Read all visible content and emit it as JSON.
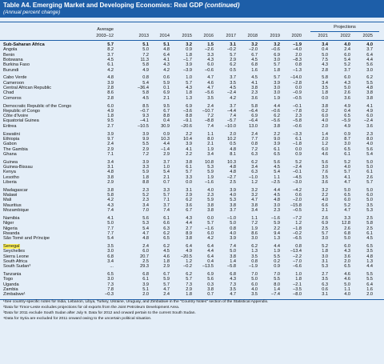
{
  "header": {
    "title": "Table A4. Emerging Market and Developing Economies: Real GDP",
    "title_note": "(continued)",
    "subtitle": "(Annual percent change)"
  },
  "table": {
    "average_label": "Average",
    "projections_label": "Projections",
    "columns": [
      "2003–12",
      "2013",
      "2014",
      "2015",
      "2016",
      "2017",
      "2018",
      "2019",
      "2020",
      "2021",
      "2022",
      "2025"
    ],
    "groups": [
      {
        "rows": [
          {
            "name": "Sub-Saharan Africa",
            "bold": true,
            "values": [
              "5.7",
              "5.1",
              "5.1",
              "3.2",
              "1.5",
              "3.1",
              "3.2",
              "3.2",
              "–1.9",
              "3.4",
              "4.0",
              "4.0"
            ]
          },
          {
            "name": "Angola",
            "values": [
              "8.2",
              "5.0",
              "4.8",
              "0.9",
              "–2.6",
              "–0.2",
              "–2.0",
              "–0.6",
              "–4.0",
              "0.4",
              "2.4",
              "3.7"
            ]
          },
          {
            "name": "Benin",
            "values": [
              "3.7",
              "7.2",
              "6.4",
              "1.8",
              "3.3",
              "5.7",
              "6.7",
              "6.9",
              "2.0",
              "5.0",
              "6.0",
              "6.4"
            ]
          },
          {
            "name": "Botswana",
            "values": [
              "4.5",
              "11.3",
              "4.1",
              "–1.7",
              "4.3",
              "2.9",
              "4.5",
              "3.0",
              "–8.3",
              "7.5",
              "5.4",
              "4.4"
            ]
          },
          {
            "name": "Burkina Faso",
            "values": [
              "6.1",
              "5.8",
              "4.3",
              "3.9",
              "6.0",
              "6.2",
              "6.8",
              "5.7",
              "0.8",
              "4.3",
              "5.2",
              "5.6"
            ]
          },
          {
            "name": "Burundi",
            "values": [
              "4.2",
              "4.9",
              "4.2",
              "–3.9",
              "–0.6",
              "0.5",
              "1.6",
              "1.8",
              "–1.3",
              "2.8",
              "3.7",
              "3.0"
            ]
          }
        ]
      },
      {
        "rows": [
          {
            "name": "Cabo Verde",
            "values": [
              "4.8",
              "0.8",
              "0.6",
              "1.0",
              "4.7",
              "3.7",
              "4.5",
              "5.7",
              "–14.0",
              "5.8",
              "6.0",
              "6.2"
            ]
          },
          {
            "name": "Cameroon",
            "values": [
              "3.9",
              "5.4",
              "5.9",
              "5.7",
              "4.6",
              "3.5",
              "4.1",
              "3.9",
              "–2.8",
              "3.4",
              "4.3",
              "5.5"
            ]
          },
          {
            "name": "Central African Republic",
            "values": [
              "2.8",
              "–36.4",
              "0.1",
              "4.3",
              "4.7",
              "4.5",
              "3.8",
              "3.0",
              "0.0",
              "3.5",
              "5.0",
              "4.8"
            ]
          },
          {
            "name": "Chad",
            "values": [
              "8.6",
              "5.8",
              "6.9",
              "1.8",
              "–5.6",
              "–2.4",
              "2.3",
              "3.0",
              "–0.9",
              "1.8",
              "2.6",
              "3.8"
            ]
          },
          {
            "name": "Comoros",
            "values": [
              "2.8",
              "4.5",
              "2.1",
              "1.3",
              "3.5",
              "4.2",
              "3.6",
              "1.9",
              "–0.5",
              "0.0",
              "3.6",
              "3.8"
            ]
          }
        ]
      },
      {
        "rows": [
          {
            "name": "Democratic Republic of the Congo",
            "values": [
              "6.0",
              "8.5",
              "9.5",
              "6.9",
              "2.4",
              "3.7",
              "5.8",
              "4.4",
              "–0.1",
              "3.8",
              "4.9",
              "4.1"
            ]
          },
          {
            "name": "Republic of Congo",
            "values": [
              "4.9",
              "–0.7",
              "6.7",
              "–3.6",
              "–10.7",
              "–4.4",
              "–6.4",
              "–0.6",
              "–7.8",
              "0.2",
              "0.4",
              "4.9"
            ]
          },
          {
            "name": "Côte d'Ivoire",
            "values": [
              "1.8",
              "9.3",
              "8.8",
              "8.8",
              "7.2",
              "7.4",
              "6.9",
              "6.2",
              "2.3",
              "6.0",
              "6.5",
              "6.0"
            ]
          },
          {
            "name": "Equatorial Guinea",
            "values": [
              "9.5",
              "–4.1",
              "0.4",
              "–9.1",
              "–8.8",
              "–5.7",
              "–6.4",
              "–5.6",
              "–5.8",
              "4.0",
              "–5.9",
              "–2.4"
            ]
          },
          {
            "name": "Eritrea",
            "values": [
              "2.7",
              "–10.5",
              "30.9",
              "–20.6",
              "7.4",
              "–10.0",
              "13.0",
              "3.8",
              "–0.6",
              "2.0",
              "4.9",
              "3.6"
            ]
          }
        ]
      },
      {
        "rows": [
          {
            "name": "Eswatini",
            "values": [
              "3.9",
              "3.9",
              "0.9",
              "2.2",
              "1.1",
              "2.0",
              "2.4",
              "2.2",
              "–3.3",
              "1.4",
              "0.9",
              "2.3"
            ]
          },
          {
            "name": "Ethiopia",
            "values": [
              "9.7",
              "9.9",
              "10.3",
              "10.4",
              "8.0",
              "10.2",
              "7.7",
              "9.0",
              "6.1",
              "2.0",
              "8.7",
              "8.0"
            ]
          },
          {
            "name": "Gabon",
            "values": [
              "2.4",
              "5.5",
              "4.4",
              "3.9",
              "2.1",
              "0.5",
              "0.8",
              "3.9",
              "–1.8",
              "1.2",
              "3.0",
              "4.0"
            ]
          },
          {
            "name": "The Gambia",
            "values": [
              "2.9",
              "2.9",
              "–1.4",
              "4.1",
              "1.9",
              "4.8",
              "7.2",
              "6.1",
              "0.0",
              "6.0",
              "6.5",
              "5.6"
            ]
          },
          {
            "name": "Ghana",
            "values": [
              "7.1",
              "7.2",
              "2.9",
              "2.2",
              "3.4",
              "8.1",
              "6.3",
              "6.5",
              "0.9",
              "4.6",
              "6.1",
              "5.4"
            ]
          }
        ]
      },
      {
        "rows": [
          {
            "name": "Guinea",
            "values": [
              "3.4",
              "3.9",
              "3.7",
              "3.8",
              "10.8",
              "10.3",
              "6.2",
              "5.6",
              "5.2",
              "5.6",
              "5.2",
              "5.0"
            ]
          },
          {
            "name": "Guinea-Bissau",
            "values": [
              "3.1",
              "3.3",
              "1.0",
              "6.1",
              "5.3",
              "4.8",
              "3.4",
              "4.5",
              "–2.4",
              "3.0",
              "4.0",
              "5.0"
            ]
          },
          {
            "name": "Kenya",
            "values": [
              "4.8",
              "5.9",
              "5.4",
              "5.7",
              "5.9",
              "4.8",
              "6.3",
              "5.4",
              "–0.1",
              "7.6",
              "5.7",
              "6.1"
            ]
          },
          {
            "name": "Lesotho",
            "values": [
              "3.8",
              "1.8",
              "2.1",
              "3.3",
              "1.9",
              "–2.7",
              "–1.0",
              "1.1",
              "–4.5",
              "3.5",
              "4.1",
              "2.6"
            ]
          },
          {
            "name": "Liberia",
            "values": [
              "2.9",
              "8.8",
              "0.7",
              "0.0",
              "–1.6",
              "2.5",
              "1.2",
              "–2.5",
              "–3.0",
              "3.6",
              "4.7",
              "5.7"
            ]
          }
        ]
      },
      {
        "rows": [
          {
            "name": "Madagascar",
            "values": [
              "3.8",
              "2.3",
              "3.3",
              "3.1",
              "4.0",
              "3.9",
              "3.2",
              "4.4",
              "–4.2",
              "3.2",
              "5.0",
              "5.0"
            ]
          },
          {
            "name": "Malawi",
            "values": [
              "5.8",
              "5.2",
              "5.7",
              "2.9",
              "2.3",
              "4.0",
              "3.2",
              "4.5",
              "0.6",
              "2.2",
              "6.5",
              "6.0"
            ]
          },
          {
            "name": "Mali",
            "values": [
              "4.2",
              "2.3",
              "7.1",
              "6.2",
              "5.9",
              "5.3",
              "4.7",
              "4.8",
              "–2.0",
              "4.0",
              "6.0",
              "5.0"
            ]
          },
          {
            "name": "Mauritius",
            "values": [
              "4.3",
              "3.4",
              "3.7",
              "3.6",
              "3.8",
              "3.8",
              "3.8",
              "3.0",
              "–15.8",
              "6.6",
              "5.2",
              "3.5"
            ]
          },
          {
            "name": "Mozambique",
            "values": [
              "7.4",
              "7.0",
              "7.4",
              "6.7",
              "3.8",
              "3.7",
              "3.4",
              "2.3",
              "–0.5",
              "2.1",
              "4.7",
              "5.3"
            ]
          }
        ]
      },
      {
        "rows": [
          {
            "name": "Namibia",
            "values": [
              "4.1",
              "5.6",
              "6.1",
              "4.3",
              "0.0",
              "–1.0",
              "1.1",
              "–1.6",
              "–7.2",
              "2.6",
              "3.3",
              "2.5"
            ]
          },
          {
            "name": "Niger",
            "values": [
              "5.0",
              "5.3",
              "6.6",
              "4.4",
              "5.7",
              "5.0",
              "7.2",
              "5.9",
              "1.2",
              "6.9",
              "12.8",
              "5.8"
            ]
          },
          {
            "name": "Nigeria",
            "values": [
              "7.7",
              "5.4",
              "6.3",
              "2.7",
              "–1.6",
              "0.8",
              "1.9",
              "2.2",
              "–1.8",
              "2.5",
              "2.6",
              "2.5"
            ]
          },
          {
            "name": "Rwanda",
            "values": [
              "7.7",
              "4.7",
              "6.2",
              "8.9",
              "6.0",
              "4.0",
              "8.6",
              "9.4",
              "–0.2",
              "5.7",
              "6.8",
              "6.1"
            ]
          },
          {
            "name": "São Tomé and Príncipe",
            "values": [
              "5.4",
              "4.8",
              "6.5",
              "3.8",
              "4.2",
              "3.9",
              "3.0",
              "1.3",
              "–6.5",
              "3.0",
              "5.0",
              "4.5"
            ]
          }
        ]
      },
      {
        "rows": [
          {
            "name": "Senegal",
            "highlight": true,
            "values": [
              "3.5",
              "2.4",
              "6.2",
              "6.4",
              "6.4",
              "7.4",
              "6.2",
              "4.4",
              "0.8",
              "5.2",
              "6.0",
              "6.5"
            ]
          },
          {
            "name": "Seychelles",
            "values": [
              "3.0",
              "6.0",
              "4.5",
              "4.9",
              "4.4",
              "5.0",
              "1.3",
              "1.9",
              "–13.4",
              "1.8",
              "4.3",
              "3.5"
            ]
          },
          {
            "name": "Sierra Leone",
            "values": [
              "6.8",
              "20.7",
              "4.6",
              "–20.5",
              "6.4",
              "3.8",
              "3.5",
              "5.5",
              "–2.2",
              "3.0",
              "3.6",
              "4.8"
            ]
          },
          {
            "name": "South Africa",
            "values": [
              "3.4",
              "2.5",
              "1.8",
              "1.2",
              "0.4",
              "1.4",
              "0.8",
              "0.2",
              "–7.0",
              "3.1",
              "2.0",
              "1.3"
            ]
          },
          {
            "name": "South Sudan³",
            "values": [
              "...",
              "29.3",
              "2.9",
              "–0.2",
              "–13.5",
              "–5.8",
              "–1.9",
              "0.9",
              "–6.6",
              "5.3",
              "6.5",
              "4.4"
            ]
          }
        ]
      },
      {
        "rows": [
          {
            "name": "Tanzania",
            "values": [
              "6.5",
              "6.8",
              "6.7",
              "6.2",
              "6.9",
              "6.8",
              "7.0",
              "7.0",
              "1.0",
              "2.7",
              "4.6",
              "5.5"
            ]
          },
          {
            "name": "Togo",
            "values": [
              "3.0",
              "6.1",
              "5.9",
              "5.7",
              "5.6",
              "4.3",
              "5.0",
              "5.5",
              "1.8",
              "3.5",
              "4.6",
              "5.5"
            ]
          },
          {
            "name": "Uganda",
            "values": [
              "7.3",
              "3.9",
              "5.7",
              "7.3",
              "0.3",
              "7.3",
              "6.0",
              "8.0",
              "–2.1",
              "6.3",
              "5.0",
              "6.4"
            ]
          },
          {
            "name": "Zambia",
            "values": [
              "7.8",
              "5.1",
              "4.7",
              "2.9",
              "3.8",
              "3.5",
              "4.0",
              "1.4",
              "–3.5",
              "0.6",
              "1.1",
              "1.6"
            ]
          },
          {
            "name": "Zimbabwe¹",
            "values": [
              "–0.3",
              "2.0",
              "2.4",
              "1.8",
              "0.7",
              "4.7",
              "3.5",
              "–7.4",
              "–8.0",
              "3.1",
              "4.0",
              "2.0"
            ]
          }
        ]
      }
    ]
  },
  "footnotes": [
    "¹See country-specific notes for India, Lebanon, Libya, Turkey, Ukraine, Uruguay, and Zimbabwe in the \"Country Notes\" section of the Statistical Appendix.",
    "²Data for Timor-Leste excludes projections for oil exports from the Joint Petroleum Development Area.",
    "³Data for 2011 exclude South Sudan after July 9. Data for 2012 and onward pertain to the current South Sudan.",
    "⁴Data for Syria are excluded for 2011 onward owing to the uncertain political situation."
  ]
}
